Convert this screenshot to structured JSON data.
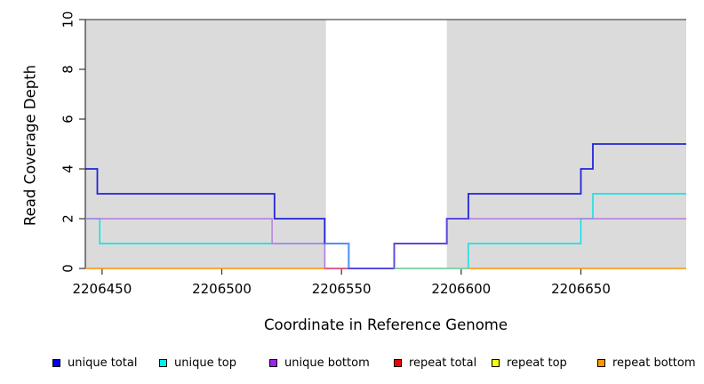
{
  "chart_data": {
    "type": "line",
    "subtype": "step-coverage",
    "title": "",
    "xlabel": "Coordinate in Reference Genome",
    "ylabel": "Read Coverage Depth",
    "xlim": [
      2206443,
      2206694
    ],
    "ylim": [
      0,
      10
    ],
    "x_ticks": [
      2206450,
      2206500,
      2206550,
      2206600,
      2206650
    ],
    "y_ticks": [
      0,
      2,
      4,
      6,
      8,
      10
    ],
    "grid": false,
    "legend_position": "bottom",
    "colors": {
      "shade": "#DBDBDB",
      "top_rule": "#4D4D4D",
      "axis": "#333333",
      "blue": "#2424D9",
      "cyan": "#00DFE8",
      "purple": "#B47BE0",
      "rose": "#E0446A",
      "azure": "#4D9BFF",
      "blue_violet": "#5A4BE0",
      "green": "#86CE90",
      "orange": "#FF9100"
    },
    "shaded_regions": [
      {
        "x0": 2206443,
        "x1": 2206543.5,
        "y0": 0,
        "y1": 10
      },
      {
        "x0": 2206594,
        "x1": 2206694,
        "y0": 0,
        "y1": 10
      }
    ],
    "top_rule_y": 10,
    "series": [
      {
        "name": "unique total",
        "color": "#0000EE",
        "steps": [
          [
            2206443,
            4
          ],
          [
            2206448,
            3
          ],
          [
            2206522,
            2
          ],
          [
            2206543,
            1
          ],
          [
            2206553,
            0
          ],
          [
            2206572,
            1
          ],
          [
            2206594,
            2
          ],
          [
            2206603,
            3
          ],
          [
            2206650,
            4
          ],
          [
            2206655,
            5
          ],
          [
            2206694,
            5
          ]
        ]
      },
      {
        "name": "unique top",
        "color": "#00EEEE",
        "steps": [
          [
            2206443,
            2
          ],
          [
            2206449,
            1
          ],
          [
            2206553,
            0
          ],
          [
            2206603,
            1
          ],
          [
            2206650,
            2
          ],
          [
            2206655,
            3
          ],
          [
            2206694,
            3
          ]
        ]
      },
      {
        "name": "unique bottom",
        "color": "#A020F0",
        "steps": [
          [
            2206443,
            2
          ],
          [
            2206521,
            1
          ],
          [
            2206543,
            0
          ],
          [
            2206572,
            1
          ],
          [
            2206594,
            2
          ],
          [
            2206694,
            2
          ]
        ]
      },
      {
        "name": "repeat total",
        "color": "#EE0000",
        "steps": [
          [
            2206443,
            0
          ],
          [
            2206553,
            0
          ]
        ]
      },
      {
        "name": "repeat top",
        "color": "#FFFF00",
        "steps": [
          [
            2206443,
            0
          ],
          [
            2206694,
            0
          ]
        ]
      },
      {
        "name": "repeat bottom",
        "color": "#FF9900",
        "steps": [
          [
            2206443,
            0
          ],
          [
            2206543,
            0
          ],
          [
            2206603,
            0
          ],
          [
            2206694,
            0
          ]
        ]
      }
    ],
    "render_segments": [
      {
        "name": "unique-top-line",
        "color": "#00DFE8",
        "width": 1.4,
        "points": [
          [
            2206443,
            2
          ],
          [
            2206449,
            2
          ],
          [
            2206449,
            1
          ],
          [
            2206553,
            1
          ],
          [
            2206553,
            0
          ],
          [
            2206603,
            0
          ],
          [
            2206603,
            1
          ],
          [
            2206650,
            1
          ],
          [
            2206650,
            2
          ],
          [
            2206655,
            2
          ],
          [
            2206655,
            3
          ],
          [
            2206694,
            3
          ]
        ]
      },
      {
        "name": "unique-bottom-line-left",
        "color": "#B47BE0",
        "width": 1.4,
        "points": [
          [
            2206443,
            2
          ],
          [
            2206521,
            2
          ],
          [
            2206521,
            1
          ],
          [
            2206543,
            1
          ],
          [
            2206543,
            0
          ],
          [
            2206553,
            0
          ]
        ]
      },
      {
        "name": "unique-bottom-line-right",
        "color": "#B47BE0",
        "width": 1.4,
        "points": [
          [
            2206572,
            0
          ],
          [
            2206572,
            1
          ],
          [
            2206594,
            1
          ],
          [
            2206594,
            2
          ],
          [
            2206694,
            2
          ]
        ]
      },
      {
        "name": "repeat-total-line",
        "color": "#E0446A",
        "width": 1.4,
        "points": [
          [
            2206543,
            0
          ],
          [
            2206553,
            0
          ]
        ]
      },
      {
        "name": "unique-total-line",
        "color": "#2424D9",
        "width": 1.8,
        "points": [
          [
            2206443,
            4
          ],
          [
            2206448,
            4
          ],
          [
            2206448,
            3
          ],
          [
            2206522,
            3
          ],
          [
            2206522,
            2
          ],
          [
            2206543,
            2
          ],
          [
            2206543,
            1
          ],
          [
            2206553,
            1
          ],
          [
            2206553,
            0
          ],
          [
            2206572,
            0
          ],
          [
            2206572,
            1
          ],
          [
            2206594,
            1
          ],
          [
            2206594,
            2
          ],
          [
            2206603,
            2
          ],
          [
            2206603,
            3
          ],
          [
            2206650,
            3
          ],
          [
            2206650,
            4
          ],
          [
            2206655,
            4
          ],
          [
            2206655,
            5
          ],
          [
            2206694,
            5
          ]
        ]
      },
      {
        "name": "unique-total-over-top-blend",
        "color": "#4D9BFF",
        "width": 1.8,
        "points": [
          [
            2206543,
            1
          ],
          [
            2206553,
            1
          ],
          [
            2206553,
            0
          ]
        ]
      },
      {
        "name": "unique-total-over-bottom-blend",
        "color": "#5A4BE0",
        "width": 1.8,
        "points": [
          [
            2206553,
            0
          ],
          [
            2206572,
            0
          ],
          [
            2206572,
            1
          ],
          [
            2206594,
            1
          ],
          [
            2206594,
            2
          ],
          [
            2206603,
            2
          ]
        ]
      },
      {
        "name": "repeat-top-over-top-blend",
        "color": "#86CE90",
        "width": 1.4,
        "points": [
          [
            2206572,
            0
          ],
          [
            2206603,
            0
          ]
        ]
      },
      {
        "name": "repeat-bottom-line-left",
        "color": "#FF9100",
        "width": 1.6,
        "points": [
          [
            2206443,
            0
          ],
          [
            2206543,
            0
          ]
        ]
      },
      {
        "name": "repeat-bottom-line-right",
        "color": "#FF9100",
        "width": 1.6,
        "points": [
          [
            2206603,
            0
          ],
          [
            2206694,
            0
          ]
        ]
      }
    ],
    "legend": [
      {
        "label": "unique total",
        "color": "#0000EE"
      },
      {
        "label": "unique top",
        "color": "#00EEEE"
      },
      {
        "label": "unique bottom",
        "color": "#A020F0"
      },
      {
        "label": "repeat total",
        "color": "#EE0000"
      },
      {
        "label": "repeat top",
        "color": "#FFFF00"
      },
      {
        "label": "repeat bottom",
        "color": "#FF9900"
      }
    ]
  }
}
